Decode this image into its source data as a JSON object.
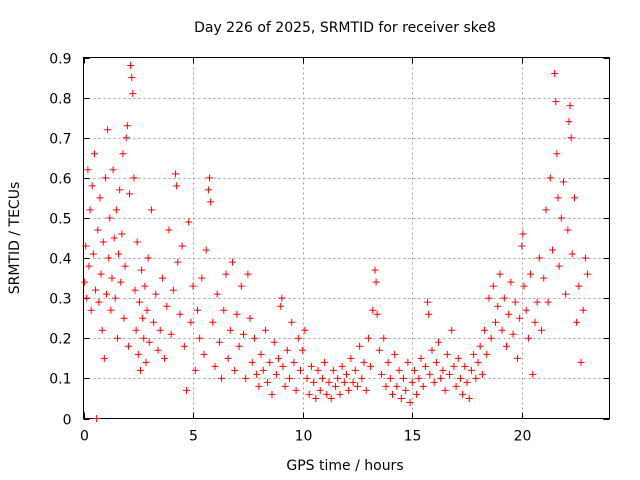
{
  "chart_data": {
    "type": "scatter",
    "title": "Day 226 of 2025, SRMTID for receiver ske8",
    "xlabel": "GPS time / hours",
    "ylabel": "SRMTID / TECUs",
    "xlim": [
      0,
      24
    ],
    "ylim": [
      0,
      0.9
    ],
    "xticks": [
      0,
      5,
      10,
      15,
      20
    ],
    "xtick_labels": [
      "0",
      "5",
      "10",
      "15",
      "20"
    ],
    "yticks": [
      0,
      0.1,
      0.2,
      0.3,
      0.4,
      0.5,
      0.6,
      0.7,
      0.8,
      0.9
    ],
    "ytick_labels": [
      "0",
      "0.1",
      "0.2",
      "0.3",
      "0.4",
      "0.5",
      "0.6",
      "0.7",
      "0.8",
      "0.9"
    ],
    "grid": true,
    "marker": "+",
    "color": "#ff0000",
    "series": [
      {
        "name": "SRMTID",
        "points": [
          [
            0.05,
            0.34
          ],
          [
            0.1,
            0.43
          ],
          [
            0.15,
            0.3
          ],
          [
            0.2,
            0.62
          ],
          [
            0.25,
            0.38
          ],
          [
            0.3,
            0.52
          ],
          [
            0.35,
            0.27
          ],
          [
            0.4,
            0.58
          ],
          [
            0.45,
            0.41
          ],
          [
            0.5,
            0.66
          ],
          [
            0.55,
            0.32
          ],
          [
            0.6,
            0.0
          ],
          [
            0.65,
            0.47
          ],
          [
            0.7,
            0.29
          ],
          [
            0.75,
            0.55
          ],
          [
            0.8,
            0.36
          ],
          [
            0.85,
            0.22
          ],
          [
            0.9,
            0.44
          ],
          [
            0.95,
            0.15
          ],
          [
            1.0,
            0.6
          ],
          [
            1.05,
            0.31
          ],
          [
            1.1,
            0.72
          ],
          [
            1.15,
            0.4
          ],
          [
            1.2,
            0.5
          ],
          [
            1.25,
            0.27
          ],
          [
            1.3,
            0.35
          ],
          [
            1.35,
            0.62
          ],
          [
            1.4,
            0.45
          ],
          [
            1.45,
            0.3
          ],
          [
            1.5,
            0.52
          ],
          [
            1.55,
            0.2
          ],
          [
            1.6,
            0.41
          ],
          [
            1.65,
            0.57
          ],
          [
            1.7,
            0.34
          ],
          [
            1.75,
            0.46
          ],
          [
            1.8,
            0.66
          ],
          [
            1.85,
            0.25
          ],
          [
            1.9,
            0.38
          ],
          [
            1.95,
            0.7
          ],
          [
            2.0,
            0.73
          ],
          [
            2.05,
            0.18
          ],
          [
            2.1,
            0.56
          ],
          [
            2.15,
            0.88
          ],
          [
            2.2,
            0.85
          ],
          [
            2.25,
            0.81
          ],
          [
            2.3,
            0.6
          ],
          [
            2.35,
            0.32
          ],
          [
            2.4,
            0.22
          ],
          [
            2.45,
            0.44
          ],
          [
            2.5,
            0.16
          ],
          [
            2.55,
            0.29
          ],
          [
            2.6,
            0.12
          ],
          [
            2.65,
            0.37
          ],
          [
            2.7,
            0.25
          ],
          [
            2.75,
            0.2
          ],
          [
            2.8,
            0.33
          ],
          [
            2.85,
            0.14
          ],
          [
            2.9,
            0.27
          ],
          [
            2.95,
            0.4
          ],
          [
            3.0,
            0.19
          ],
          [
            3.1,
            0.52
          ],
          [
            3.2,
            0.24
          ],
          [
            3.3,
            0.31
          ],
          [
            3.4,
            0.17
          ],
          [
            3.5,
            0.22
          ],
          [
            3.6,
            0.35
          ],
          [
            3.7,
            0.15
          ],
          [
            3.8,
            0.28
          ],
          [
            3.9,
            0.47
          ],
          [
            4.0,
            0.21
          ],
          [
            4.1,
            0.32
          ],
          [
            4.2,
            0.61
          ],
          [
            4.25,
            0.58
          ],
          [
            4.3,
            0.39
          ],
          [
            4.4,
            0.26
          ],
          [
            4.5,
            0.43
          ],
          [
            4.6,
            0.18
          ],
          [
            4.7,
            0.07
          ],
          [
            4.8,
            0.49
          ],
          [
            4.9,
            0.24
          ],
          [
            5.0,
            0.33
          ],
          [
            5.1,
            0.12
          ],
          [
            5.2,
            0.27
          ],
          [
            5.3,
            0.2
          ],
          [
            5.4,
            0.35
          ],
          [
            5.5,
            0.16
          ],
          [
            5.6,
            0.42
          ],
          [
            5.7,
            0.57
          ],
          [
            5.75,
            0.6
          ],
          [
            5.8,
            0.54
          ],
          [
            5.9,
            0.24
          ],
          [
            6.0,
            0.13
          ],
          [
            6.1,
            0.31
          ],
          [
            6.2,
            0.19
          ],
          [
            6.3,
            0.1
          ],
          [
            6.4,
            0.27
          ],
          [
            6.5,
            0.36
          ],
          [
            6.6,
            0.15
          ],
          [
            6.7,
            0.22
          ],
          [
            6.8,
            0.39
          ],
          [
            6.9,
            0.12
          ],
          [
            7.0,
            0.26
          ],
          [
            7.1,
            0.18
          ],
          [
            7.2,
            0.33
          ],
          [
            7.3,
            0.21
          ],
          [
            7.4,
            0.1
          ],
          [
            7.5,
            0.36
          ],
          [
            7.6,
            0.25
          ],
          [
            7.7,
            0.14
          ],
          [
            7.8,
            0.2
          ],
          [
            7.9,
            0.11
          ],
          [
            8.0,
            0.08
          ],
          [
            8.1,
            0.16
          ],
          [
            8.2,
            0.12
          ],
          [
            8.3,
            0.22
          ],
          [
            8.4,
            0.09
          ],
          [
            8.5,
            0.14
          ],
          [
            8.6,
            0.06
          ],
          [
            8.7,
            0.19
          ],
          [
            8.8,
            0.11
          ],
          [
            8.9,
            0.15
          ],
          [
            9.0,
            0.28
          ],
          [
            9.05,
            0.3
          ],
          [
            9.1,
            0.13
          ],
          [
            9.2,
            0.08
          ],
          [
            9.3,
            0.17
          ],
          [
            9.4,
            0.1
          ],
          [
            9.5,
            0.24
          ],
          [
            9.6,
            0.14
          ],
          [
            9.7,
            0.07
          ],
          [
            9.8,
            0.2
          ],
          [
            9.9,
            0.12
          ],
          [
            10.0,
            0.17
          ],
          [
            10.1,
            0.22
          ],
          [
            10.2,
            0.1
          ],
          [
            10.3,
            0.06
          ],
          [
            10.4,
            0.13
          ],
          [
            10.5,
            0.09
          ],
          [
            10.6,
            0.05
          ],
          [
            10.7,
            0.12
          ],
          [
            10.8,
            0.07
          ],
          [
            10.9,
            0.1
          ],
          [
            11.0,
            0.14
          ],
          [
            11.1,
            0.06
          ],
          [
            11.2,
            0.09
          ],
          [
            11.3,
            0.05
          ],
          [
            11.4,
            0.12
          ],
          [
            11.5,
            0.08
          ],
          [
            11.6,
            0.1
          ],
          [
            11.7,
            0.06
          ],
          [
            11.8,
            0.13
          ],
          [
            11.9,
            0.09
          ],
          [
            12.0,
            0.11
          ],
          [
            12.1,
            0.07
          ],
          [
            12.2,
            0.15
          ],
          [
            12.3,
            0.09
          ],
          [
            12.4,
            0.12
          ],
          [
            12.5,
            0.08
          ],
          [
            12.6,
            0.18
          ],
          [
            12.7,
            0.1
          ],
          [
            12.8,
            0.14
          ],
          [
            12.9,
            0.07
          ],
          [
            13.0,
            0.2
          ],
          [
            13.1,
            0.13
          ],
          [
            13.2,
            0.27
          ],
          [
            13.3,
            0.37
          ],
          [
            13.35,
            0.34
          ],
          [
            13.4,
            0.26
          ],
          [
            13.5,
            0.17
          ],
          [
            13.6,
            0.11
          ],
          [
            13.7,
            0.2
          ],
          [
            13.8,
            0.08
          ],
          [
            13.9,
            0.14
          ],
          [
            14.0,
            0.1
          ],
          [
            14.1,
            0.06
          ],
          [
            14.2,
            0.16
          ],
          [
            14.3,
            0.08
          ],
          [
            14.4,
            0.12
          ],
          [
            14.5,
            0.05
          ],
          [
            14.6,
            0.1
          ],
          [
            14.7,
            0.07
          ],
          [
            14.8,
            0.14
          ],
          [
            14.9,
            0.04
          ],
          [
            15.0,
            0.09
          ],
          [
            15.1,
            0.12
          ],
          [
            15.2,
            0.06
          ],
          [
            15.3,
            0.1
          ],
          [
            15.4,
            0.15
          ],
          [
            15.5,
            0.08
          ],
          [
            15.6,
            0.13
          ],
          [
            15.7,
            0.29
          ],
          [
            15.75,
            0.26
          ],
          [
            15.8,
            0.11
          ],
          [
            15.9,
            0.17
          ],
          [
            16.0,
            0.09
          ],
          [
            16.1,
            0.14
          ],
          [
            16.2,
            0.19
          ],
          [
            16.3,
            0.1
          ],
          [
            16.4,
            0.12
          ],
          [
            16.5,
            0.07
          ],
          [
            16.6,
            0.16
          ],
          [
            16.7,
            0.11
          ],
          [
            16.8,
            0.22
          ],
          [
            16.9,
            0.13
          ],
          [
            17.0,
            0.08
          ],
          [
            17.1,
            0.15
          ],
          [
            17.2,
            0.1
          ],
          [
            17.3,
            0.06
          ],
          [
            17.4,
            0.13
          ],
          [
            17.5,
            0.09
          ],
          [
            17.6,
            0.05
          ],
          [
            17.7,
            0.12
          ],
          [
            17.8,
            0.16
          ],
          [
            17.9,
            0.1
          ],
          [
            18.0,
            0.14
          ],
          [
            18.1,
            0.18
          ],
          [
            18.2,
            0.11
          ],
          [
            18.3,
            0.22
          ],
          [
            18.4,
            0.16
          ],
          [
            18.5,
            0.3
          ],
          [
            18.6,
            0.2
          ],
          [
            18.7,
            0.33
          ],
          [
            18.8,
            0.24
          ],
          [
            18.9,
            0.28
          ],
          [
            19.0,
            0.36
          ],
          [
            19.1,
            0.22
          ],
          [
            19.2,
            0.3
          ],
          [
            19.3,
            0.18
          ],
          [
            19.4,
            0.26
          ],
          [
            19.5,
            0.34
          ],
          [
            19.6,
            0.21
          ],
          [
            19.7,
            0.29
          ],
          [
            19.8,
            0.15
          ],
          [
            19.9,
            0.25
          ],
          [
            20.0,
            0.43
          ],
          [
            20.05,
            0.46
          ],
          [
            20.1,
            0.33
          ],
          [
            20.2,
            0.27
          ],
          [
            20.3,
            0.2
          ],
          [
            20.4,
            0.36
          ],
          [
            20.5,
            0.11
          ],
          [
            20.6,
            0.24
          ],
          [
            20.7,
            0.29
          ],
          [
            20.8,
            0.4
          ],
          [
            20.9,
            0.22
          ],
          [
            21.0,
            0.35
          ],
          [
            21.1,
            0.52
          ],
          [
            21.2,
            0.29
          ],
          [
            21.3,
            0.6
          ],
          [
            21.4,
            0.42
          ],
          [
            21.5,
            0.86
          ],
          [
            21.55,
            0.79
          ],
          [
            21.6,
            0.66
          ],
          [
            21.65,
            0.55
          ],
          [
            21.7,
            0.38
          ],
          [
            21.8,
            0.5
          ],
          [
            21.9,
            0.59
          ],
          [
            22.0,
            0.31
          ],
          [
            22.1,
            0.47
          ],
          [
            22.15,
            0.74
          ],
          [
            22.2,
            0.78
          ],
          [
            22.25,
            0.7
          ],
          [
            22.3,
            0.41
          ],
          [
            22.4,
            0.55
          ],
          [
            22.5,
            0.24
          ],
          [
            22.6,
            0.33
          ],
          [
            22.7,
            0.14
          ],
          [
            22.8,
            0.27
          ],
          [
            22.9,
            0.4
          ],
          [
            23.0,
            0.36
          ]
        ]
      }
    ]
  }
}
